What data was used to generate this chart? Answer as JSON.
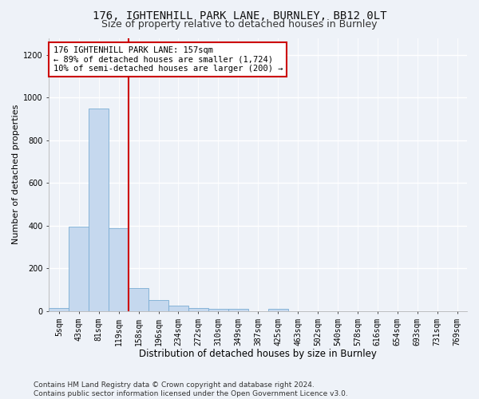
{
  "title_line1": "176, IGHTENHILL PARK LANE, BURNLEY, BB12 0LT",
  "title_line2": "Size of property relative to detached houses in Burnley",
  "xlabel": "Distribution of detached houses by size in Burnley",
  "ylabel": "Number of detached properties",
  "bin_labels": [
    "5sqm",
    "43sqm",
    "81sqm",
    "119sqm",
    "158sqm",
    "196sqm",
    "234sqm",
    "272sqm",
    "310sqm",
    "349sqm",
    "387sqm",
    "425sqm",
    "463sqm",
    "502sqm",
    "540sqm",
    "578sqm",
    "616sqm",
    "654sqm",
    "693sqm",
    "731sqm",
    "769sqm"
  ],
  "bar_heights": [
    15,
    395,
    950,
    390,
    110,
    52,
    26,
    15,
    12,
    12,
    0,
    10,
    0,
    0,
    0,
    0,
    0,
    0,
    0,
    0,
    0
  ],
  "bar_color": "#c5d8ee",
  "bar_edge_color": "#7aadd4",
  "red_line_x": 3.5,
  "ylim": [
    0,
    1280
  ],
  "yticks": [
    0,
    200,
    400,
    600,
    800,
    1000,
    1200
  ],
  "annotation_line1": "176 IGHTENHILL PARK LANE: 157sqm",
  "annotation_line2": "← 89% of detached houses are smaller (1,724)",
  "annotation_line3": "10% of semi-detached houses are larger (200) →",
  "annotation_box_color": "#ffffff",
  "annotation_box_edge": "#cc0000",
  "footer_line1": "Contains HM Land Registry data © Crown copyright and database right 2024.",
  "footer_line2": "Contains public sector information licensed under the Open Government Licence v3.0.",
  "background_color": "#eef2f8",
  "grid_color": "#ffffff",
  "title1_fontsize": 10,
  "title2_fontsize": 9,
  "xlabel_fontsize": 8.5,
  "ylabel_fontsize": 8,
  "tick_fontsize": 7,
  "annot_fontsize": 7.5,
  "footer_fontsize": 6.5
}
